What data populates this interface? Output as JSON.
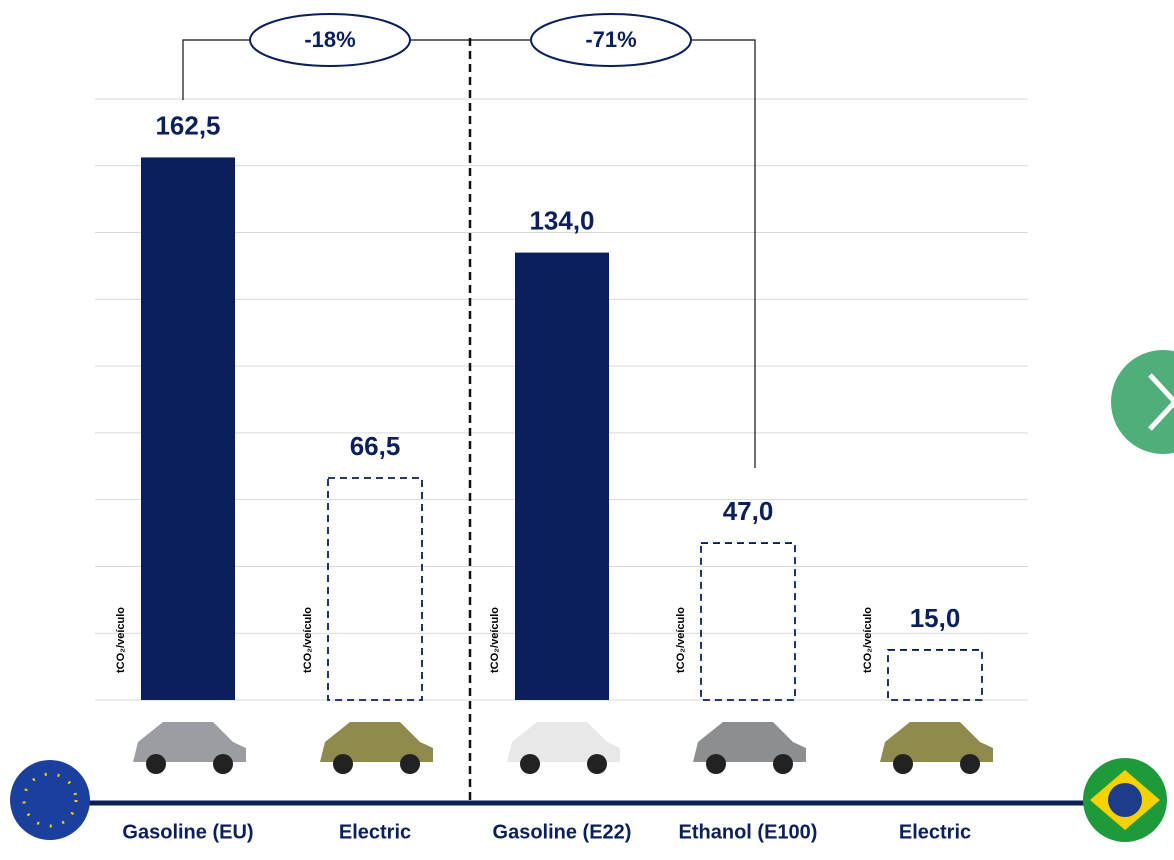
{
  "chart_data": {
    "type": "bar",
    "categories": [
      "Gasoline (EU)",
      "Electric",
      "Gasoline (E22)",
      "Ethanol (E100)",
      "Electric"
    ],
    "values": [
      162.5,
      66.5,
      134.0,
      47.0,
      15.0
    ],
    "value_labels": [
      "162,5",
      "66,5",
      "134,0",
      "47,0",
      "15,0"
    ],
    "bar_styles": [
      "solid",
      "dashed",
      "solid",
      "dashed",
      "dashed"
    ],
    "bar_styles_note_removed": null,
    "color": "#0a1f5c",
    "unit_label": "tCO₂/veículo",
    "comparisons": [
      "-18%",
      "-71%"
    ],
    "ylim": [
      0,
      180
    ],
    "yticks": [
      0,
      20,
      40,
      60,
      80,
      100,
      120,
      140,
      160,
      180
    ],
    "grid": true
  }
}
